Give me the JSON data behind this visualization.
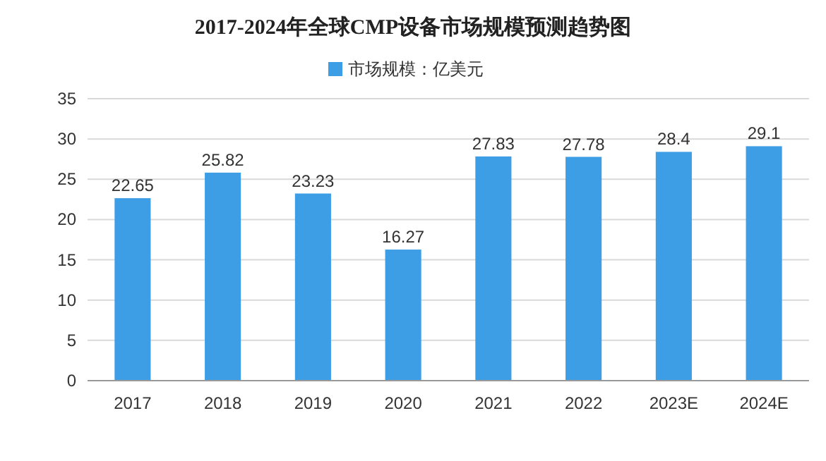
{
  "chart_data": {
    "type": "bar",
    "title": "2017-2024年全球CMP设备市场规模预测趋势图",
    "categories": [
      "2017",
      "2018",
      "2019",
      "2020",
      "2021",
      "2022",
      "2023E",
      "2024E"
    ],
    "series": [
      {
        "name": "市场规模：亿美元",
        "color": "#3d9ee6",
        "values": [
          22.65,
          25.82,
          23.23,
          16.27,
          27.83,
          27.78,
          28.4,
          29.1
        ]
      }
    ],
    "ylim": [
      0,
      35
    ],
    "yticks": [
      0,
      5,
      10,
      15,
      20,
      25,
      30,
      35
    ],
    "grid": "y",
    "legend": "top",
    "data_labels": true
  }
}
